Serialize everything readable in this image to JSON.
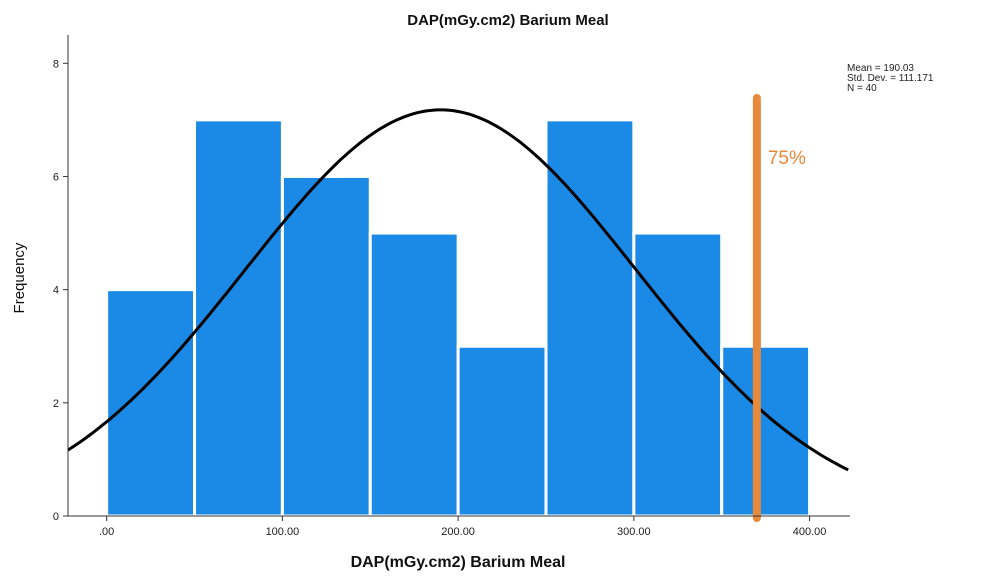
{
  "chart_data": {
    "type": "bar",
    "title": "DAP(mGy.cm2) Barium Meal",
    "xlabel": "DAP(mGy.cm2) Barium Meal",
    "ylabel": "Frequency",
    "bins": [
      {
        "start": 0,
        "end": 50,
        "value": 4
      },
      {
        "start": 50,
        "end": 100,
        "value": 7
      },
      {
        "start": 100,
        "end": 150,
        "value": 6
      },
      {
        "start": 150,
        "end": 200,
        "value": 5
      },
      {
        "start": 200,
        "end": 250,
        "value": 3
      },
      {
        "start": 250,
        "end": 300,
        "value": 7
      },
      {
        "start": 300,
        "end": 350,
        "value": 5
      },
      {
        "start": 350,
        "end": 400,
        "value": 3
      }
    ],
    "x_ticks": [
      {
        "value": 0,
        "label": ".00"
      },
      {
        "value": 100,
        "label": "100.00"
      },
      {
        "value": 200,
        "label": "200.00"
      },
      {
        "value": 300,
        "label": "300.00"
      },
      {
        "value": 400,
        "label": "400.00"
      }
    ],
    "y_ticks": [
      {
        "value": 0,
        "label": "0"
      },
      {
        "value": 2,
        "label": "2"
      },
      {
        "value": 4,
        "label": "4"
      },
      {
        "value": 6,
        "label": "6"
      },
      {
        "value": 8,
        "label": "8"
      }
    ],
    "xlim": [
      -22,
      423
    ],
    "ylim": [
      0,
      8.5
    ],
    "bar_color": "#1a8ae6",
    "curve_color": "#000000",
    "normal_curve": {
      "mean": 190.03,
      "std": 111.171,
      "n": 40,
      "bin_width": 50
    },
    "marker": {
      "x": 370,
      "label": "75%",
      "color": "#e8883a"
    },
    "stats": [
      "Mean = 190.03",
      "Std. Dev. = 111.171",
      "N = 40"
    ],
    "grid": false
  }
}
